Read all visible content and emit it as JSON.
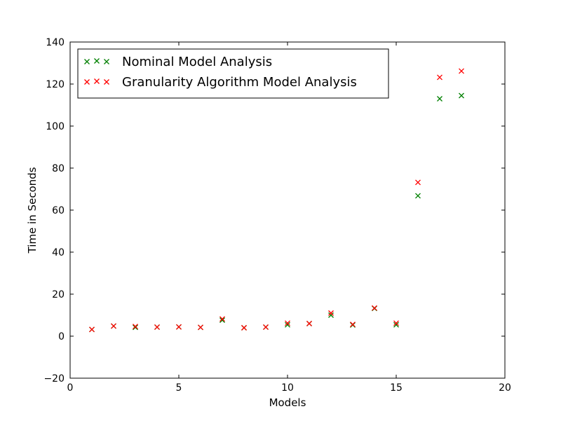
{
  "chart_data": {
    "type": "scatter",
    "xlabel": "Models",
    "ylabel": "Time in Seconds",
    "xlim": [
      0,
      20
    ],
    "ylim": [
      -20,
      140
    ],
    "x_ticks": [
      0,
      5,
      10,
      15,
      20
    ],
    "y_ticks": [
      -20,
      0,
      20,
      40,
      60,
      80,
      100,
      120,
      140
    ],
    "grid": false,
    "legend_position": "top-left",
    "marker": "x",
    "series": [
      {
        "name": "Nominal Model Analysis",
        "color": "#008000",
        "points": [
          [
            1,
            3.2
          ],
          [
            2,
            4.8
          ],
          [
            3,
            4.2
          ],
          [
            4,
            4.3
          ],
          [
            5,
            4.4
          ],
          [
            6,
            4.2
          ],
          [
            7,
            7.6
          ],
          [
            8,
            4.0
          ],
          [
            9,
            4.3
          ],
          [
            10,
            5.4
          ],
          [
            11,
            6.0
          ],
          [
            12,
            10.0
          ],
          [
            13,
            5.3
          ],
          [
            14,
            13.2
          ],
          [
            15,
            5.4
          ],
          [
            16,
            66.8
          ],
          [
            17,
            113.0
          ],
          [
            18,
            114.5
          ]
        ]
      },
      {
        "name": "Granularity Algorithm Model Analysis",
        "color": "#ff0000",
        "points": [
          [
            1,
            3.2
          ],
          [
            2,
            4.8
          ],
          [
            3,
            4.6
          ],
          [
            4,
            4.3
          ],
          [
            5,
            4.4
          ],
          [
            6,
            4.2
          ],
          [
            7,
            8.2
          ],
          [
            8,
            4.0
          ],
          [
            9,
            4.3
          ],
          [
            10,
            6.2
          ],
          [
            11,
            6.0
          ],
          [
            12,
            11.0
          ],
          [
            13,
            5.6
          ],
          [
            14,
            13.4
          ],
          [
            15,
            6.2
          ],
          [
            16,
            73.2
          ],
          [
            17,
            123.2
          ],
          [
            18,
            126.2
          ]
        ]
      }
    ]
  }
}
